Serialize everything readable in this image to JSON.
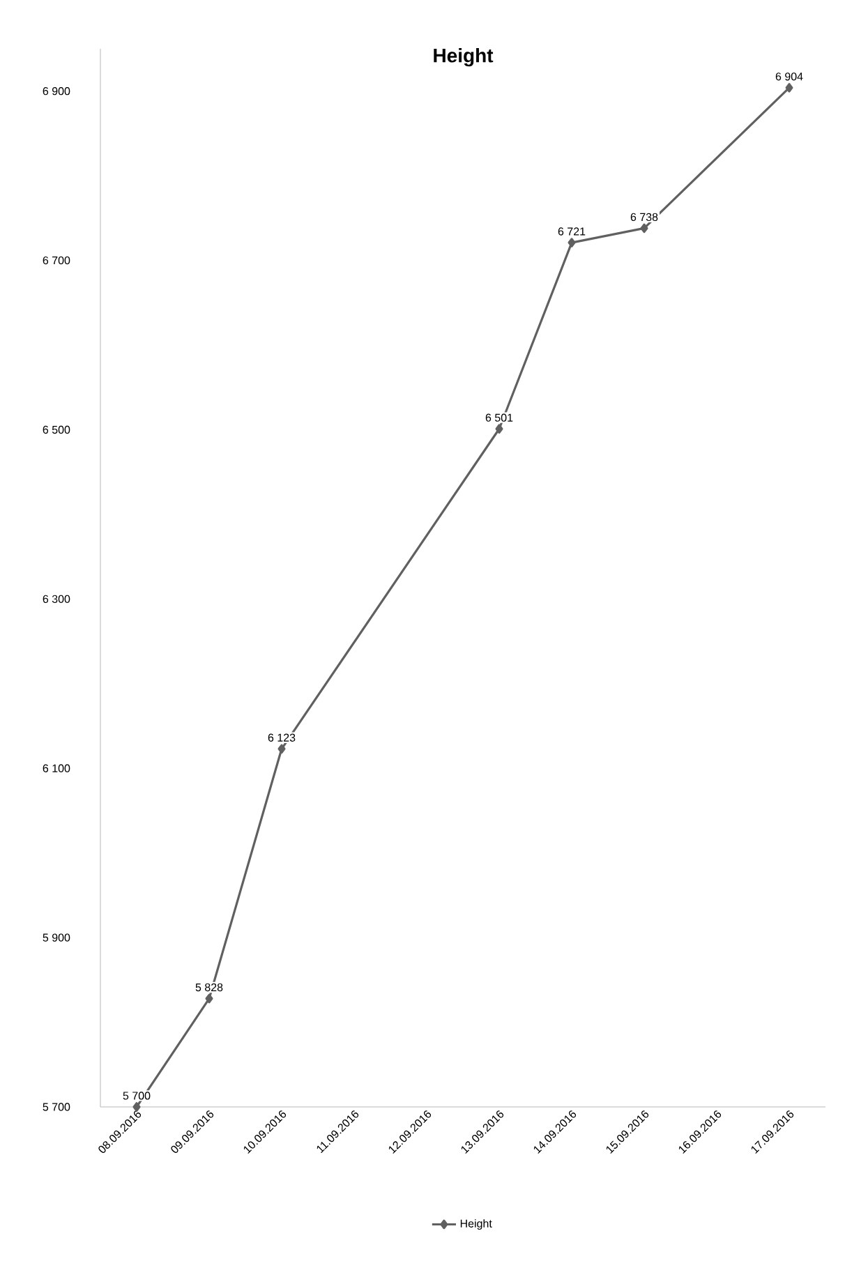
{
  "chart_data": {
    "type": "line",
    "title": "Height",
    "categories": [
      "08.09.2016",
      "09.09.2016",
      "10.09.2016",
      "11.09.2016",
      "12.09.2016",
      "13.09.2016",
      "14.09.2016",
      "15.09.2016",
      "16.09.2016",
      "17.09.2016"
    ],
    "series": [
      {
        "name": "Height",
        "color": "#606060",
        "values": [
          5700,
          5828,
          6123,
          null,
          null,
          6501,
          6721,
          6738,
          null,
          6904
        ],
        "value_labels": [
          "5 700",
          "5 828",
          "6 123",
          null,
          null,
          "6 501",
          "6 721",
          "6 738",
          null,
          "6 904"
        ]
      }
    ],
    "ylim": [
      5700,
      6950
    ],
    "yticks": [
      {
        "value": 5700,
        "label": "5 700"
      },
      {
        "value": 5900,
        "label": "5 900"
      },
      {
        "value": 6100,
        "label": "6 100"
      },
      {
        "value": 6300,
        "label": "6 300"
      },
      {
        "value": 6500,
        "label": "6 500"
      },
      {
        "value": 6700,
        "label": "6 700"
      },
      {
        "value": 6900,
        "label": "6 900"
      }
    ],
    "marker": "diamond",
    "line_style": "solid",
    "legend": "bottom",
    "grid": false
  }
}
